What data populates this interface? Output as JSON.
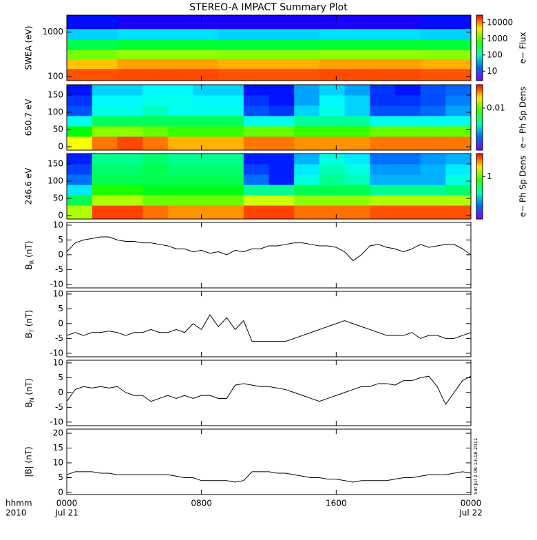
{
  "title": "STEREO-A IMPACT Summary Plot",
  "timestamp": "Sat Jul  2 06:13:18 2011",
  "x_axis": {
    "label": [
      "hhmm",
      "2010"
    ],
    "xlim": [
      0,
      24
    ],
    "xticks": [
      {
        "value": 0,
        "label": "0000"
      },
      {
        "value": 8,
        "label": "0800"
      },
      {
        "value": 16,
        "label": "1600"
      },
      {
        "value": 24,
        "label": "0000"
      }
    ],
    "xtick_dates": [
      "Jul 21",
      null,
      null,
      "Jul 22"
    ],
    "x": [
      0,
      0.5,
      1,
      1.5,
      2,
      2.5,
      3,
      3.5,
      4,
      4.5,
      5,
      5.5,
      6,
      6.5,
      7,
      7.5,
      8,
      8.5,
      9,
      9.5,
      10,
      10.5,
      11,
      11.5,
      12,
      12.5,
      13,
      13.5,
      14,
      14.5,
      15,
      15.5,
      16,
      16.5,
      17,
      17.5,
      18,
      18.5,
      19,
      19.5,
      20,
      20.5,
      21,
      21.5,
      22,
      22.5,
      23,
      23.5,
      24
    ]
  },
  "chart_data": [
    {
      "type": "heatmap",
      "ylabel": "SWEA (eV)",
      "ylog": true,
      "ylim": [
        81,
        2424
      ],
      "yticks": [
        100,
        1000
      ],
      "xbins": [
        0,
        3,
        6,
        9,
        12,
        15,
        18,
        21,
        24
      ],
      "ybins": [
        81,
        150,
        250,
        400,
        700,
        1200,
        2424
      ],
      "z": [
        [
          15000,
          16000,
          16000,
          15000,
          15000,
          16000,
          16000,
          15000
        ],
        [
          6000,
          8000,
          8000,
          7000,
          7000,
          8000,
          8000,
          7000
        ],
        [
          1200,
          1500,
          1500,
          1400,
          1400,
          1500,
          1500,
          1400
        ],
        [
          250,
          300,
          300,
          280,
          280,
          300,
          300,
          280
        ],
        [
          40,
          45,
          45,
          40,
          40,
          45,
          45,
          40
        ],
        [
          8,
          6,
          6,
          6,
          6,
          6,
          6,
          8
        ]
      ],
      "zlabel": "e− Flux",
      "zlog": true,
      "zlim": [
        2.6,
        29000
      ],
      "zticks": [
        10,
        100,
        1000,
        10000
      ]
    },
    {
      "type": "heatmap",
      "ylabel": "650.7 eV",
      "ylog": false,
      "ylim": [
        -10,
        180
      ],
      "yticks": [
        0,
        50,
        100,
        150
      ],
      "xbins": [
        0,
        1.5,
        3,
        4.5,
        6,
        7.5,
        9,
        10.5,
        12,
        13.5,
        15,
        16.5,
        18,
        19.5,
        21,
        22.5,
        24
      ],
      "ybins": [
        -10,
        30,
        60,
        90,
        120,
        150,
        180
      ],
      "z": [
        [
          0.02,
          0.04,
          0.05,
          0.04,
          0.03,
          0.03,
          0.03,
          0.04,
          0.04,
          0.035,
          0.035,
          0.035,
          0.04,
          0.04,
          0.04,
          0.04
        ],
        [
          0.006,
          0.012,
          0.012,
          0.01,
          0.008,
          0.008,
          0.008,
          0.01,
          0.01,
          0.008,
          0.008,
          0.008,
          0.01,
          0.01,
          0.01,
          0.01
        ],
        [
          0.002,
          0.004,
          0.004,
          0.004,
          0.004,
          0.004,
          0.004,
          0.002,
          0.002,
          0.003,
          0.003,
          0.003,
          0.002,
          0.002,
          0.002,
          0.002
        ],
        [
          0.0008,
          0.002,
          0.002,
          0.0025,
          0.002,
          0.002,
          0.002,
          0.0008,
          0.0007,
          0.0015,
          0.002,
          0.0015,
          0.0008,
          0.0008,
          0.0009,
          0.0012
        ],
        [
          0.0007,
          0.0018,
          0.0018,
          0.002,
          0.002,
          0.0018,
          0.0018,
          0.0007,
          0.0006,
          0.0012,
          0.0018,
          0.0015,
          0.0007,
          0.0007,
          0.0008,
          0.001
        ],
        [
          0.0006,
          0.0015,
          0.0015,
          0.0018,
          0.0018,
          0.0015,
          0.0015,
          0.0006,
          0.0006,
          0.0012,
          0.0015,
          0.0012,
          0.0007,
          0.0006,
          0.0008,
          0.0009
        ]
      ],
      "zlabel": "e− Ph Sp Dens",
      "zlog": true,
      "zlim": [
        0.0003,
        0.07
      ],
      "zticks": [
        0.01
      ]
    },
    {
      "type": "heatmap",
      "ylabel": "246.6 eV",
      "ylog": false,
      "ylim": [
        -10,
        180
      ],
      "yticks": [
        0,
        50,
        100,
        150
      ],
      "xbins": [
        0,
        1.5,
        3,
        4.5,
        6,
        7.5,
        9,
        10.5,
        12,
        13.5,
        15,
        16.5,
        18,
        19.5,
        21,
        22.5,
        24
      ],
      "ybins": [
        -10,
        30,
        60,
        90,
        120,
        150,
        180
      ],
      "z": [
        [
          1.2,
          2.5,
          2.5,
          2.2,
          2,
          2,
          2,
          2.5,
          2.5,
          2.2,
          2.2,
          2.2,
          2.4,
          2.4,
          2.4,
          2.4
        ],
        [
          0.6,
          1.2,
          1.2,
          1,
          1,
          1,
          1,
          1.3,
          1.3,
          1.1,
          1.1,
          1.1,
          1.2,
          1.2,
          1.2,
          1.2
        ],
        [
          0.35,
          0.8,
          0.8,
          0.7,
          0.7,
          0.7,
          0.7,
          0.5,
          0.5,
          0.6,
          0.6,
          0.6,
          0.5,
          0.5,
          0.5,
          0.55
        ],
        [
          0.25,
          0.6,
          0.6,
          0.6,
          0.6,
          0.6,
          0.6,
          0.25,
          0.2,
          0.4,
          0.5,
          0.45,
          0.3,
          0.3,
          0.3,
          0.4
        ],
        [
          0.22,
          0.55,
          0.55,
          0.6,
          0.55,
          0.55,
          0.55,
          0.22,
          0.2,
          0.35,
          0.45,
          0.4,
          0.28,
          0.28,
          0.3,
          0.35
        ],
        [
          0.2,
          0.5,
          0.5,
          0.55,
          0.5,
          0.5,
          0.5,
          0.2,
          0.2,
          0.3,
          0.4,
          0.35,
          0.25,
          0.25,
          0.28,
          0.3
        ]
      ],
      "zlabel": "e− Ph Sp Dens",
      "zlog": true,
      "zlim": [
        0.13,
        3
      ],
      "zticks": [
        1
      ]
    },
    {
      "type": "line",
      "ylabel": [
        "B",
        "R",
        " (nT)"
      ],
      "ylim": [
        -11.2,
        10.9
      ],
      "yticks": [
        -10,
        -5,
        0,
        5,
        10
      ],
      "color": "#000000",
      "values": [
        1,
        4,
        5,
        5.5,
        6,
        6,
        5,
        4.5,
        4.5,
        4,
        4,
        3.5,
        3,
        2,
        2,
        1,
        1.5,
        0.5,
        1,
        0,
        1.5,
        1,
        2,
        2,
        3,
        3,
        3.5,
        4,
        4,
        3.5,
        3,
        3,
        2.5,
        1,
        -2,
        0,
        3,
        3.5,
        2.5,
        2,
        1,
        2,
        3.5,
        2.5,
        3,
        3.5,
        3.5,
        2,
        0
      ]
    },
    {
      "type": "line",
      "ylabel": [
        "B",
        "T",
        " (nT)"
      ],
      "ylim": [
        -11.2,
        10.9
      ],
      "yticks": [
        -10,
        -5,
        0,
        5,
        10
      ],
      "color": "#000000",
      "values": [
        -4,
        -3,
        -4,
        -3,
        -3,
        -2.5,
        -3,
        -4,
        -3,
        -3,
        -2,
        -3,
        -3,
        -2,
        -3,
        0,
        -2,
        3,
        -1,
        2,
        -2,
        1,
        -6,
        -6,
        -6,
        -6,
        -6,
        -5,
        -4,
        -3,
        -2,
        -1,
        0,
        1,
        0,
        -1,
        -2,
        -3,
        -4,
        -4,
        -4,
        -3,
        -5,
        -4,
        -4,
        -5,
        -5,
        -4,
        -3
      ]
    },
    {
      "type": "line",
      "ylabel": [
        "B",
        "N",
        " (nT)"
      ],
      "ylim": [
        -11.2,
        10.9
      ],
      "yticks": [
        -10,
        -5,
        0,
        5,
        10
      ],
      "color": "#000000",
      "values": [
        -3,
        1,
        2,
        1.5,
        2,
        1.5,
        2,
        0,
        -1,
        -1,
        -3,
        -2,
        -1,
        -2,
        -1,
        -2,
        -1,
        -1,
        -2,
        -2,
        2.5,
        3,
        2.5,
        2,
        2,
        1.5,
        1,
        0,
        -1,
        -2,
        -3,
        -2,
        -1,
        0,
        1,
        2,
        2,
        3,
        3,
        2.5,
        4,
        4,
        5,
        5.5,
        2,
        -4,
        0,
        4,
        5.5
      ]
    },
    {
      "type": "line",
      "ylabel": "|B| (nT)",
      "ylim": [
        -0.7,
        21.4
      ],
      "yticks": [
        0,
        5,
        10,
        15,
        20
      ],
      "color": "#000000",
      "values": [
        6,
        7,
        7,
        7,
        6.5,
        6.5,
        6,
        6,
        6,
        6,
        6,
        6,
        6,
        5.5,
        5,
        5,
        4,
        4,
        4,
        4,
        3.5,
        4,
        7,
        7,
        7,
        6.5,
        6.5,
        6,
        5.5,
        5,
        5,
        4.5,
        4.5,
        4,
        3.5,
        4,
        4,
        4,
        4,
        4.5,
        5,
        5,
        5.5,
        6,
        6,
        6,
        6.5,
        7,
        6.5
      ]
    }
  ]
}
